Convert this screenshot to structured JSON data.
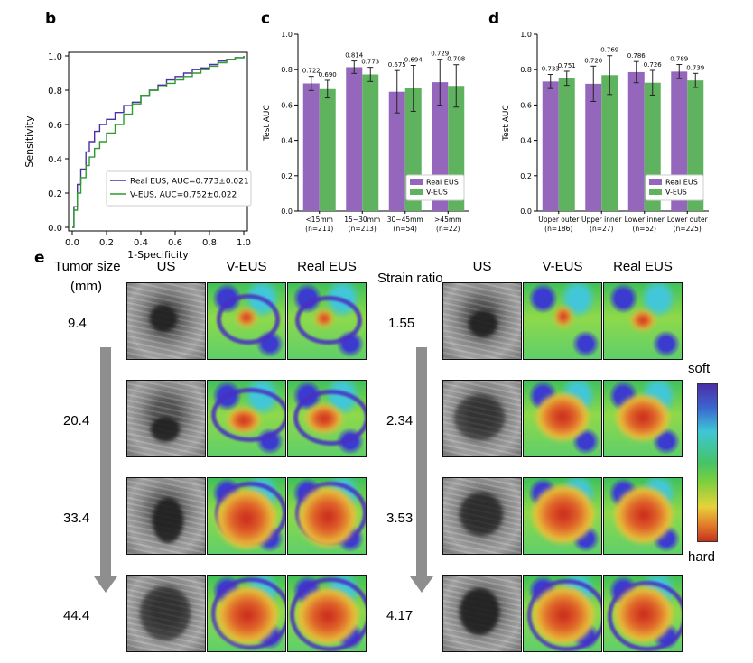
{
  "panels": {
    "b": "b",
    "c": "c",
    "d": "d",
    "e": "e"
  },
  "roc": {
    "xlabel": "1-Specificity",
    "ylabel": "Sensitivity",
    "ticks": [
      "0.0",
      "0.2",
      "0.4",
      "0.6",
      "0.8",
      "1.0"
    ],
    "legend": [
      {
        "label": "Real EUS, AUC=0.773±0.021",
        "color": "#4b2fa7"
      },
      {
        "label": "V-EUS, AUC=0.752±0.022",
        "color": "#2c9c2c"
      }
    ]
  },
  "chart_data": [
    {
      "type": "line",
      "title": "",
      "xlabel": "1-Specificity",
      "ylabel": "Sensitivity",
      "xlim": [
        0,
        1
      ],
      "ylim": [
        0,
        1
      ],
      "series": [
        {
          "name": "Real EUS, AUC=0.773±0.021",
          "color": "#4b2fa7",
          "x": [
            0,
            0.01,
            0.03,
            0.05,
            0.08,
            0.1,
            0.13,
            0.16,
            0.2,
            0.25,
            0.3,
            0.35,
            0.4,
            0.45,
            0.5,
            0.55,
            0.6,
            0.65,
            0.7,
            0.75,
            0.8,
            0.85,
            0.9,
            0.95,
            1.0
          ],
          "y": [
            0,
            0.12,
            0.25,
            0.34,
            0.44,
            0.5,
            0.56,
            0.6,
            0.63,
            0.67,
            0.71,
            0.73,
            0.77,
            0.8,
            0.83,
            0.86,
            0.88,
            0.9,
            0.92,
            0.93,
            0.95,
            0.97,
            0.98,
            0.99,
            1.0
          ]
        },
        {
          "name": "V-EUS, AUC=0.752±0.022",
          "color": "#2c9c2c",
          "x": [
            0,
            0.01,
            0.03,
            0.05,
            0.08,
            0.1,
            0.13,
            0.16,
            0.2,
            0.25,
            0.3,
            0.35,
            0.4,
            0.45,
            0.5,
            0.55,
            0.6,
            0.65,
            0.7,
            0.75,
            0.8,
            0.85,
            0.9,
            0.95,
            1.0
          ],
          "y": [
            0,
            0.1,
            0.2,
            0.29,
            0.36,
            0.41,
            0.46,
            0.5,
            0.55,
            0.6,
            0.66,
            0.72,
            0.77,
            0.8,
            0.82,
            0.84,
            0.86,
            0.88,
            0.9,
            0.92,
            0.94,
            0.96,
            0.98,
            0.99,
            1.0
          ]
        }
      ]
    },
    {
      "type": "bar",
      "ylabel": "Test AUC",
      "ylim": [
        0,
        1
      ],
      "yticks": [
        "0.0",
        "0.2",
        "0.4",
        "0.6",
        "0.8",
        "1.0"
      ],
      "categories": [
        [
          "<15mm",
          "(n=211)"
        ],
        [
          "15~30mm",
          "(n=213)"
        ],
        [
          "30~45mm",
          "(n=54)"
        ],
        [
          ">45mm",
          "(n=22)"
        ]
      ],
      "series": [
        {
          "name": "Real EUS",
          "color": "#9467bd",
          "values": [
            0.722,
            0.814,
            0.675,
            0.729
          ],
          "labels": [
            "0.722",
            "0.814",
            "0.675",
            "0.729"
          ],
          "err": [
            0.04,
            0.035,
            0.12,
            0.13
          ]
        },
        {
          "name": "V-EUS",
          "color": "#5fb35f",
          "values": [
            0.69,
            0.773,
            0.694,
            0.708
          ],
          "labels": [
            "0.690",
            "0.773",
            "0.694",
            "0.708"
          ],
          "err": [
            0.05,
            0.04,
            0.13,
            0.12
          ]
        }
      ],
      "legend": "lower-right"
    },
    {
      "type": "bar",
      "ylabel": "Test AUC",
      "ylim": [
        0,
        1
      ],
      "yticks": [
        "0.0",
        "0.2",
        "0.4",
        "0.6",
        "0.8",
        "1.0"
      ],
      "categories": [
        [
          "Upper outer",
          "(n=186)"
        ],
        [
          "Upper inner",
          "(n=27)"
        ],
        [
          "Lower inner",
          "(n=62)"
        ],
        [
          "Lower outer",
          "(n=225)"
        ]
      ],
      "series": [
        {
          "name": "Real EUS",
          "color": "#9467bd",
          "values": [
            0.733,
            0.72,
            0.786,
            0.789
          ],
          "labels": [
            "0.733",
            "0.720",
            "0.786",
            "0.789"
          ],
          "err": [
            0.04,
            0.1,
            0.06,
            0.04
          ]
        },
        {
          "name": "V-EUS",
          "color": "#5fb35f",
          "values": [
            0.751,
            0.769,
            0.726,
            0.739
          ],
          "labels": [
            "0.751",
            "0.769",
            "0.726",
            "0.739"
          ],
          "err": [
            0.04,
            0.11,
            0.07,
            0.04
          ]
        }
      ],
      "legend": "lower-right"
    }
  ],
  "figure_e": {
    "left_header_line1": "Tumor size",
    "left_header_line2": "(mm)",
    "right_header": "Strain ratio",
    "columns": [
      "US",
      "V-EUS",
      "Real EUS"
    ],
    "sizes": [
      "9.4",
      "20.4",
      "33.4",
      "44.4"
    ],
    "ratios": [
      "1.55",
      "2.34",
      "3.53",
      "4.17"
    ],
    "colorbar": {
      "top": "soft",
      "bottom": "hard"
    }
  }
}
